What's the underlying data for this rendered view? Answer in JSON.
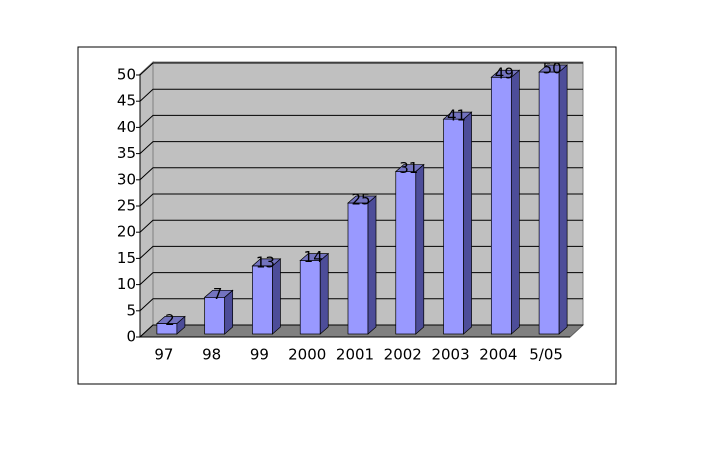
{
  "chart_data": {
    "type": "bar3d",
    "categories": [
      "97",
      "98",
      "99",
      "2000",
      "2001",
      "2002",
      "2003",
      "2004",
      "5/05"
    ],
    "values": [
      2,
      7,
      13,
      14,
      25,
      31,
      41,
      49,
      50
    ],
    "color": "#9999ff",
    "ylim": [
      0,
      50
    ],
    "yticks": [
      0,
      5,
      10,
      15,
      20,
      25,
      30,
      35,
      40,
      45,
      50
    ],
    "grid": true,
    "data_labels": true
  }
}
